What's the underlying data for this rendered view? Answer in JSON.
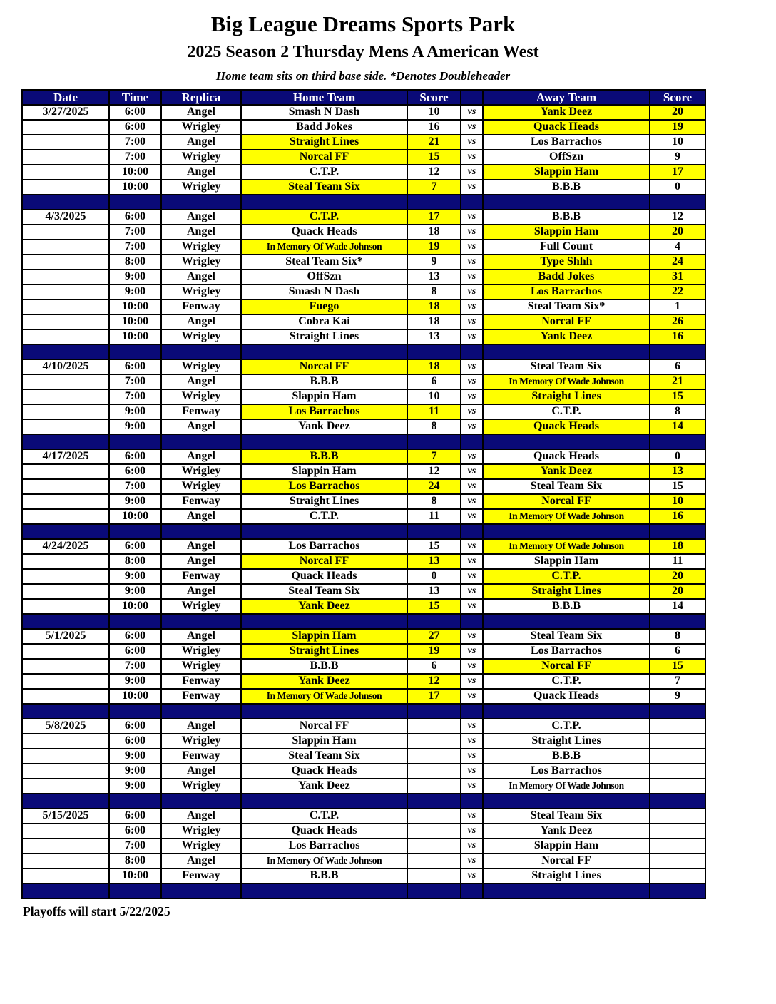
{
  "colors": {
    "navy": "#0a0a78",
    "highlight": "#ffff00"
  },
  "header": {
    "title": "Big League Dreams Sports Park",
    "subtitle": "2025 Season 2 Thursday Mens A American West",
    "note": "Home team sits on third base side.  *Denotes Doubleheader"
  },
  "table": {
    "headers": [
      "Date",
      "Time",
      "Replica",
      "Home Team",
      "Score",
      "",
      "Away Team",
      "Score"
    ],
    "vs_label": "vs",
    "blocks": [
      {
        "date": "3/27/2025",
        "games": [
          {
            "time": "6:00",
            "replica": "Angel",
            "home": "Smash N Dash",
            "home_score": "10",
            "home_win": false,
            "away": "Yank Deez",
            "away_score": "20",
            "away_win": true
          },
          {
            "time": "6:00",
            "replica": "Wrigley",
            "home": "Badd Jokes",
            "home_score": "16",
            "home_win": false,
            "away": "Quack Heads",
            "away_score": "19",
            "away_win": true
          },
          {
            "time": "7:00",
            "replica": "Angel",
            "home": "Straight Lines",
            "home_score": "21",
            "home_win": true,
            "away": "Los Barrachos",
            "away_score": "10",
            "away_win": false
          },
          {
            "time": "7:00",
            "replica": "Wrigley",
            "home": "Norcal FF",
            "home_score": "15",
            "home_win": true,
            "away": "OffSzn",
            "away_score": "9",
            "away_win": false
          },
          {
            "time": "10:00",
            "replica": "Angel",
            "home": "C.T.P.",
            "home_score": "12",
            "home_win": false,
            "away": "Slappin Ham",
            "away_score": "17",
            "away_win": true
          },
          {
            "time": "10:00",
            "replica": "Wrigley",
            "home": "Steal Team Six",
            "home_score": "7",
            "home_win": true,
            "away": "B.B.B",
            "away_score": "0",
            "away_win": false
          }
        ]
      },
      {
        "date": "4/3/2025",
        "games": [
          {
            "time": "6:00",
            "replica": "Angel",
            "home": "C.T.P.",
            "home_score": "17",
            "home_win": true,
            "away": "B.B.B",
            "away_score": "12",
            "away_win": false
          },
          {
            "time": "7:00",
            "replica": "Angel",
            "home": "Quack Heads",
            "home_score": "18",
            "home_win": false,
            "away": "Slappin Ham",
            "away_score": "20",
            "away_win": true
          },
          {
            "time": "7:00",
            "replica": "Wrigley",
            "home": "In Memory Of Wade Johnson",
            "home_score": "19",
            "home_win": true,
            "away": "Full Count",
            "away_score": "4",
            "away_win": false
          },
          {
            "time": "8:00",
            "replica": "Wrigley",
            "home": "Steal Team Six*",
            "home_score": "9",
            "home_win": false,
            "away": "Type Shhh",
            "away_score": "24",
            "away_win": true
          },
          {
            "time": "9:00",
            "replica": "Angel",
            "home": "OffSzn",
            "home_score": "13",
            "home_win": false,
            "away": "Badd Jokes",
            "away_score": "31",
            "away_win": true
          },
          {
            "time": "9:00",
            "replica": "Wrigley",
            "home": "Smash N Dash",
            "home_score": "8",
            "home_win": false,
            "away": "Los Barrachos",
            "away_score": "22",
            "away_win": true
          },
          {
            "time": "10:00",
            "replica": "Fenway",
            "home": "Fuego",
            "home_score": "18",
            "home_win": true,
            "away": "Steal Team Six*",
            "away_score": "1",
            "away_win": false
          },
          {
            "time": "10:00",
            "replica": "Angel",
            "home": "Cobra Kai",
            "home_score": "18",
            "home_win": false,
            "away": "Norcal FF",
            "away_score": "26",
            "away_win": true
          },
          {
            "time": "10:00",
            "replica": "Wrigley",
            "home": "Straight Lines",
            "home_score": "13",
            "home_win": false,
            "away": "Yank Deez",
            "away_score": "16",
            "away_win": true
          }
        ]
      },
      {
        "date": "4/10/2025",
        "games": [
          {
            "time": "6:00",
            "replica": "Wrigley",
            "home": "Norcal FF",
            "home_score": "18",
            "home_win": true,
            "away": "Steal Team Six",
            "away_score": "6",
            "away_win": false
          },
          {
            "time": "7:00",
            "replica": "Angel",
            "home": "B.B.B",
            "home_score": "6",
            "home_win": false,
            "away": "In Memory Of Wade Johnson",
            "away_score": "21",
            "away_win": true
          },
          {
            "time": "7:00",
            "replica": "Wrigley",
            "home": "Slappin Ham",
            "home_score": "10",
            "home_win": false,
            "away": "Straight Lines",
            "away_score": "15",
            "away_win": true
          },
          {
            "time": "9:00",
            "replica": "Fenway",
            "home": "Los Barrachos",
            "home_score": "11",
            "home_win": true,
            "away": "C.T.P.",
            "away_score": "8",
            "away_win": false
          },
          {
            "time": "9:00",
            "replica": "Angel",
            "home": "Yank Deez",
            "home_score": "8",
            "home_win": false,
            "away": "Quack Heads",
            "away_score": "14",
            "away_win": true
          }
        ]
      },
      {
        "date": "4/17/2025",
        "games": [
          {
            "time": "6:00",
            "replica": "Angel",
            "home": "B.B.B",
            "home_score": "7",
            "home_win": true,
            "away": "Quack Heads",
            "away_score": "0",
            "away_win": false
          },
          {
            "time": "6:00",
            "replica": "Wrigley",
            "home": "Slappin Ham",
            "home_score": "12",
            "home_win": false,
            "away": "Yank Deez",
            "away_score": "13",
            "away_win": true
          },
          {
            "time": "7:00",
            "replica": "Wrigley",
            "home": "Los Barrachos",
            "home_score": "24",
            "home_win": true,
            "away": "Steal Team Six",
            "away_score": "15",
            "away_win": false
          },
          {
            "time": "9:00",
            "replica": "Fenway",
            "home": "Straight Lines",
            "home_score": "8",
            "home_win": false,
            "away": "Norcal FF",
            "away_score": "10",
            "away_win": true
          },
          {
            "time": "10:00",
            "replica": "Angel",
            "home": "C.T.P.",
            "home_score": "11",
            "home_win": false,
            "away": "In Memory Of Wade Johnson",
            "away_score": "16",
            "away_win": true
          }
        ]
      },
      {
        "date": "4/24/2025",
        "games": [
          {
            "time": "6:00",
            "replica": "Angel",
            "home": "Los Barrachos",
            "home_score": "15",
            "home_win": false,
            "away": "In Memory Of Wade Johnson",
            "away_score": "18",
            "away_win": true
          },
          {
            "time": "8:00",
            "replica": "Angel",
            "home": "Norcal FF",
            "home_score": "13",
            "home_win": true,
            "away": "Slappin Ham",
            "away_score": "11",
            "away_win": false
          },
          {
            "time": "9:00",
            "replica": "Fenway",
            "home": "Quack Heads",
            "home_score": "0",
            "home_win": false,
            "away": "C.T.P.",
            "away_score": "20",
            "away_win": true
          },
          {
            "time": "9:00",
            "replica": "Angel",
            "home": "Steal Team Six",
            "home_score": "13",
            "home_win": false,
            "away": "Straight Lines",
            "away_score": "20",
            "away_win": true
          },
          {
            "time": "10:00",
            "replica": "Wrigley",
            "home": "Yank Deez",
            "home_score": "15",
            "home_win": true,
            "away": "B.B.B",
            "away_score": "14",
            "away_win": false
          }
        ]
      },
      {
        "date": "5/1/2025",
        "games": [
          {
            "time": "6:00",
            "replica": "Angel",
            "home": "Slappin Ham",
            "home_score": "27",
            "home_win": true,
            "away": "Steal Team Six",
            "away_score": "8",
            "away_win": false
          },
          {
            "time": "6:00",
            "replica": "Wrigley",
            "home": "Straight Lines",
            "home_score": "19",
            "home_win": true,
            "away": "Los Barrachos",
            "away_score": "6",
            "away_win": false
          },
          {
            "time": "7:00",
            "replica": "Wrigley",
            "home": "B.B.B",
            "home_score": "6",
            "home_win": false,
            "away": "Norcal FF",
            "away_score": "15",
            "away_win": true
          },
          {
            "time": "9:00",
            "replica": "Fenway",
            "home": "Yank Deez",
            "home_score": "12",
            "home_win": true,
            "away": "C.T.P.",
            "away_score": "7",
            "away_win": false
          },
          {
            "time": "10:00",
            "replica": "Fenway",
            "home": "In Memory Of Wade Johnson",
            "home_score": "17",
            "home_win": true,
            "away": "Quack Heads",
            "away_score": "9",
            "away_win": false
          }
        ]
      },
      {
        "date": "5/8/2025",
        "games": [
          {
            "time": "6:00",
            "replica": "Angel",
            "home": "Norcal FF",
            "home_score": "",
            "home_win": false,
            "away": "C.T.P.",
            "away_score": "",
            "away_win": false
          },
          {
            "time": "6:00",
            "replica": "Wrigley",
            "home": "Slappin Ham",
            "home_score": "",
            "home_win": false,
            "away": "Straight Lines",
            "away_score": "",
            "away_win": false
          },
          {
            "time": "9:00",
            "replica": "Fenway",
            "home": "Steal Team Six",
            "home_score": "",
            "home_win": false,
            "away": "B.B.B",
            "away_score": "",
            "away_win": false
          },
          {
            "time": "9:00",
            "replica": "Angel",
            "home": "Quack Heads",
            "home_score": "",
            "home_win": false,
            "away": "Los Barrachos",
            "away_score": "",
            "away_win": false
          },
          {
            "time": "9:00",
            "replica": "Wrigley",
            "home": "Yank Deez",
            "home_score": "",
            "home_win": false,
            "away": "In Memory Of Wade Johnson",
            "away_score": "",
            "away_win": false
          }
        ]
      },
      {
        "date": "5/15/2025",
        "games": [
          {
            "time": "6:00",
            "replica": "Angel",
            "home": "C.T.P.",
            "home_score": "",
            "home_win": false,
            "away": "Steal Team Six",
            "away_score": "",
            "away_win": false
          },
          {
            "time": "6:00",
            "replica": "Wrigley",
            "home": "Quack Heads",
            "home_score": "",
            "home_win": false,
            "away": "Yank Deez",
            "away_score": "",
            "away_win": false
          },
          {
            "time": "7:00",
            "replica": "Wrigley",
            "home": "Los Barrachos",
            "home_score": "",
            "home_win": false,
            "away": "Slappin Ham",
            "away_score": "",
            "away_win": false
          },
          {
            "time": "8:00",
            "replica": "Angel",
            "home": "In Memory Of Wade Johnson",
            "home_score": "",
            "home_win": false,
            "away": "Norcal FF",
            "away_score": "",
            "away_win": false
          },
          {
            "time": "10:00",
            "replica": "Fenway",
            "home": "B.B.B",
            "home_score": "",
            "home_win": false,
            "away": "Straight Lines",
            "away_score": "",
            "away_win": false
          }
        ]
      }
    ]
  },
  "footer": {
    "note": "Playoffs will start 5/22/2025"
  }
}
